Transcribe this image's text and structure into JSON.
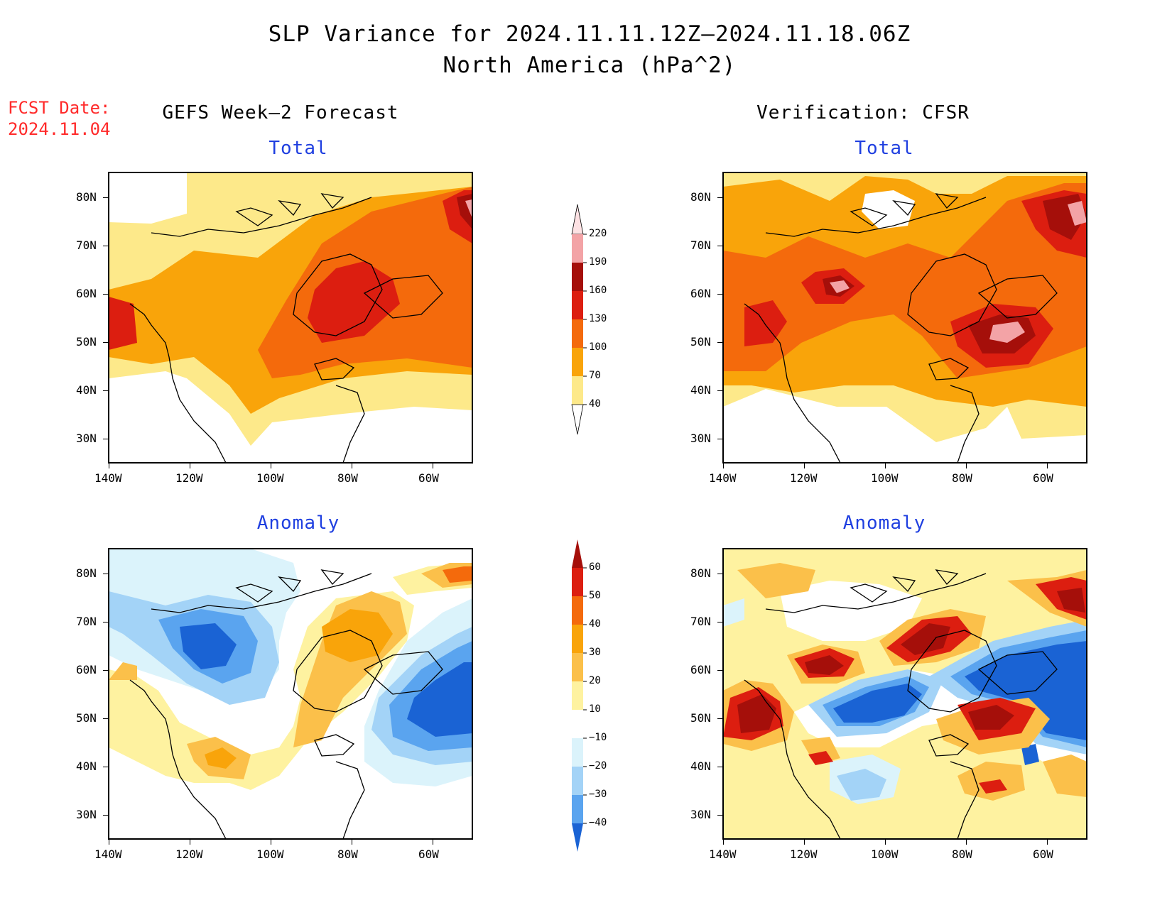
{
  "header": {
    "title_line1": "SLP Variance for 2024.11.11.12Z–2024.11.18.06Z",
    "title_line2": "North America (hPa^2)",
    "fcst_label": "FCST Date:",
    "fcst_date": "2024.11.04"
  },
  "columns": {
    "left_title": "GEFS Week–2 Forecast",
    "right_title": "Verification: CFSR"
  },
  "panels": {
    "total_label": "Total",
    "anomaly_label": "Anomaly"
  },
  "axes": {
    "lat_labels": [
      "80N",
      "70N",
      "60N",
      "50N",
      "40N",
      "30N"
    ],
    "lon_labels": [
      "140W",
      "120W",
      "100W",
      "80W",
      "60W"
    ]
  },
  "colorbars": {
    "total": {
      "levels": [
        "40",
        "70",
        "100",
        "130",
        "160",
        "190",
        "220"
      ],
      "colors": [
        "#fde98a",
        "#f9a40a",
        "#f46a0c",
        "#dc1e10",
        "#a50f0a",
        "#f3a3a6",
        "#fde1e3"
      ]
    },
    "anomaly": {
      "levels": [
        "60",
        "50",
        "40",
        "30",
        "20",
        "10",
        "−10",
        "−20",
        "−30",
        "−40"
      ],
      "colors_top_to_bottom": [
        "#a50f0a",
        "#dc1e10",
        "#f46a0c",
        "#f9a40a",
        "#fbc04a",
        "#fef2a0",
        "#ffffff",
        "#dbf3fb",
        "#a3d3f7",
        "#5aa4ef",
        "#1a63d4"
      ]
    }
  }
}
